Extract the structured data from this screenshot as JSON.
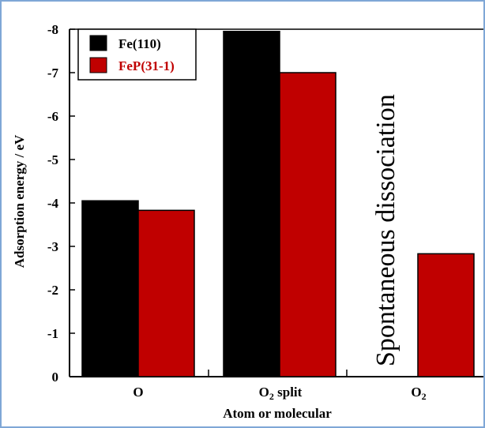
{
  "chart_data": {
    "type": "bar",
    "categories": [
      "O",
      "O2 split",
      "O2"
    ],
    "category_labels": [
      {
        "base": "O",
        "sub": ""
      },
      {
        "base": "O",
        "sub": "2",
        "tail": " split"
      },
      {
        "base": "O",
        "sub": "2",
        "tail": ""
      }
    ],
    "series": [
      {
        "name": "Fe(110)",
        "color": "#000000",
        "values": [
          -4.05,
          -7.95,
          null
        ]
      },
      {
        "name": "FeP(31-1)",
        "color": "#c00000",
        "values": [
          -3.83,
          -7.0,
          -2.83
        ]
      }
    ],
    "ylabel": "Adsorption energy / eV",
    "xlabel": "Atom or molecular",
    "ylim": [
      0,
      -8
    ],
    "yticks": [
      0,
      -1,
      -2,
      -3,
      -4,
      -5,
      -6,
      -7,
      -8
    ],
    "ytick_labels": [
      "0",
      "-1",
      "-2",
      "-3",
      "-4",
      "-5",
      "-6",
      "-7",
      "-8"
    ],
    "legend_position": "top-left",
    "annotation": "Spontaneous dissociation",
    "grid": false
  }
}
